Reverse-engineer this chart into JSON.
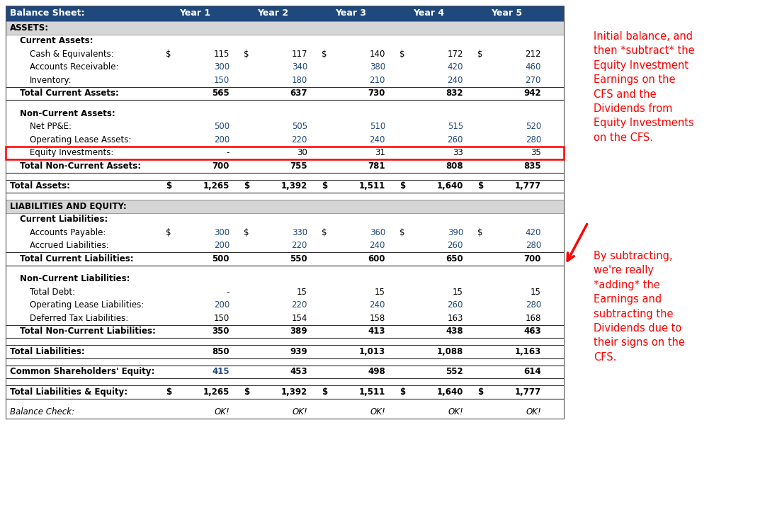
{
  "header_bg": "#1F497D",
  "assets_bg": "#D6D6D6",
  "blue_text": "#1F497D",
  "black_text": "#000000",
  "red_text": "#FF0000",
  "annotation1": "Initial balance, and\nthen *subtract* the\nEquity Investment\nEarnings on the\nCFS and the\nDividends from\nEquity Investments\non the CFS.",
  "annotation2": "By subtracting,\nwe're really\n*adding* the\nEarnings and\nsubtracting the\nDividends due to\ntheir signs on the\nCFS.",
  "col_header": [
    "Balance Sheet:",
    "Year 1",
    "Year 2",
    "Year 3",
    "Year 4",
    "Year 5"
  ],
  "rows": [
    {
      "label": "ASSETS:",
      "type": "section_header",
      "indent": 0,
      "values": [
        "",
        "",
        "",
        "",
        ""
      ],
      "color": "black",
      "dollar": false
    },
    {
      "label": "Current Assets:",
      "type": "subsection",
      "indent": 1,
      "values": [
        "",
        "",
        "",
        "",
        ""
      ],
      "color": "black",
      "dollar": false
    },
    {
      "label": "Cash & Equivalents:",
      "type": "data",
      "indent": 2,
      "values": [
        "115",
        "117",
        "140",
        "172",
        "212"
      ],
      "color": "black",
      "dollar": true
    },
    {
      "label": "Accounts Receivable:",
      "type": "data",
      "indent": 2,
      "values": [
        "300",
        "340",
        "380",
        "420",
        "460"
      ],
      "color": "blue",
      "dollar": false
    },
    {
      "label": "Inventory:",
      "type": "data",
      "indent": 2,
      "values": [
        "150",
        "180",
        "210",
        "240",
        "270"
      ],
      "color": "blue",
      "dollar": false
    },
    {
      "label": "Total Current Assets:",
      "type": "total",
      "indent": 1,
      "values": [
        "565",
        "637",
        "730",
        "832",
        "942"
      ],
      "color": "black",
      "dollar": false
    },
    {
      "label": "",
      "type": "spacer",
      "indent": 0,
      "values": [
        "",
        "",
        "",
        "",
        ""
      ],
      "color": "black",
      "dollar": false
    },
    {
      "label": "Non-Current Assets:",
      "type": "subsection",
      "indent": 1,
      "values": [
        "",
        "",
        "",
        "",
        ""
      ],
      "color": "black",
      "dollar": false
    },
    {
      "label": "Net PP&E:",
      "type": "data",
      "indent": 2,
      "values": [
        "500",
        "505",
        "510",
        "515",
        "520"
      ],
      "color": "blue",
      "dollar": false
    },
    {
      "label": "Operating Lease Assets:",
      "type": "data",
      "indent": 2,
      "values": [
        "200",
        "220",
        "240",
        "260",
        "280"
      ],
      "color": "blue",
      "dollar": false
    },
    {
      "label": "Equity Investments:",
      "type": "data_redbox",
      "indent": 2,
      "values": [
        "-",
        "30",
        "31",
        "33",
        "35"
      ],
      "color": "black",
      "dollar": false
    },
    {
      "label": "Total Non-Current Assets:",
      "type": "total",
      "indent": 1,
      "values": [
        "700",
        "755",
        "781",
        "808",
        "835"
      ],
      "color": "black",
      "dollar": false
    },
    {
      "label": "",
      "type": "spacer",
      "indent": 0,
      "values": [
        "",
        "",
        "",
        "",
        ""
      ],
      "color": "black",
      "dollar": false
    },
    {
      "label": "Total Assets:",
      "type": "total",
      "indent": 0,
      "values": [
        "1,265",
        "1,392",
        "1,511",
        "1,640",
        "1,777"
      ],
      "color": "black",
      "dollar": true
    },
    {
      "label": "",
      "type": "spacer",
      "indent": 0,
      "values": [
        "",
        "",
        "",
        "",
        ""
      ],
      "color": "black",
      "dollar": false
    },
    {
      "label": "LIABILITIES AND EQUITY:",
      "type": "section_header",
      "indent": 0,
      "values": [
        "",
        "",
        "",
        "",
        ""
      ],
      "color": "black",
      "dollar": false
    },
    {
      "label": "Current Liabilities:",
      "type": "subsection",
      "indent": 1,
      "values": [
        "",
        "",
        "",
        "",
        ""
      ],
      "color": "black",
      "dollar": false
    },
    {
      "label": "Accounts Payable:",
      "type": "data",
      "indent": 2,
      "values": [
        "300",
        "330",
        "360",
        "390",
        "420"
      ],
      "color": "blue",
      "dollar": true
    },
    {
      "label": "Accrued Liabilities:",
      "type": "data",
      "indent": 2,
      "values": [
        "200",
        "220",
        "240",
        "260",
        "280"
      ],
      "color": "blue",
      "dollar": false
    },
    {
      "label": "Total Current Liabilities:",
      "type": "total",
      "indent": 1,
      "values": [
        "500",
        "550",
        "600",
        "650",
        "700"
      ],
      "color": "black",
      "dollar": false
    },
    {
      "label": "",
      "type": "spacer",
      "indent": 0,
      "values": [
        "",
        "",
        "",
        "",
        ""
      ],
      "color": "black",
      "dollar": false
    },
    {
      "label": "Non-Current Liabilities:",
      "type": "subsection",
      "indent": 1,
      "values": [
        "",
        "",
        "",
        "",
        ""
      ],
      "color": "black",
      "dollar": false
    },
    {
      "label": "Total Debt:",
      "type": "data",
      "indent": 2,
      "values": [
        "-",
        "15",
        "15",
        "15",
        "15"
      ],
      "color": "black",
      "dollar": false
    },
    {
      "label": "Operating Lease Liabilities:",
      "type": "data",
      "indent": 2,
      "values": [
        "200",
        "220",
        "240",
        "260",
        "280"
      ],
      "color": "blue",
      "dollar": false
    },
    {
      "label": "Deferred Tax Liabilities:",
      "type": "data",
      "indent": 2,
      "values": [
        "150",
        "154",
        "158",
        "163",
        "168"
      ],
      "color": "black",
      "dollar": false
    },
    {
      "label": "Total Non-Current Liabilities:",
      "type": "total",
      "indent": 1,
      "values": [
        "350",
        "389",
        "413",
        "438",
        "463"
      ],
      "color": "black",
      "dollar": false
    },
    {
      "label": "",
      "type": "spacer",
      "indent": 0,
      "values": [
        "",
        "",
        "",
        "",
        ""
      ],
      "color": "black",
      "dollar": false
    },
    {
      "label": "Total Liabilities:",
      "type": "total",
      "indent": 0,
      "values": [
        "850",
        "939",
        "1,013",
        "1,088",
        "1,163"
      ],
      "color": "black",
      "dollar": false
    },
    {
      "label": "",
      "type": "spacer",
      "indent": 0,
      "values": [
        "",
        "",
        "",
        "",
        ""
      ],
      "color": "black",
      "dollar": false
    },
    {
      "label": "Common Shareholders' Equity:",
      "type": "total",
      "indent": 0,
      "values": [
        "415",
        "453",
        "498",
        "552",
        "614"
      ],
      "color": "blue_first",
      "dollar": false
    },
    {
      "label": "",
      "type": "spacer",
      "indent": 0,
      "values": [
        "",
        "",
        "",
        "",
        ""
      ],
      "color": "black",
      "dollar": false
    },
    {
      "label": "Total Liabilities & Equity:",
      "type": "total",
      "indent": 0,
      "values": [
        "1,265",
        "1,392",
        "1,511",
        "1,640",
        "1,777"
      ],
      "color": "black",
      "dollar": true
    },
    {
      "label": "",
      "type": "spacer",
      "indent": 0,
      "values": [
        "",
        "",
        "",
        "",
        ""
      ],
      "color": "black",
      "dollar": false
    },
    {
      "label": "Balance Check:",
      "type": "italic",
      "indent": 0,
      "values": [
        "OK!",
        "OK!",
        "OK!",
        "OK!",
        "OK!"
      ],
      "color": "black",
      "dollar": false
    }
  ]
}
